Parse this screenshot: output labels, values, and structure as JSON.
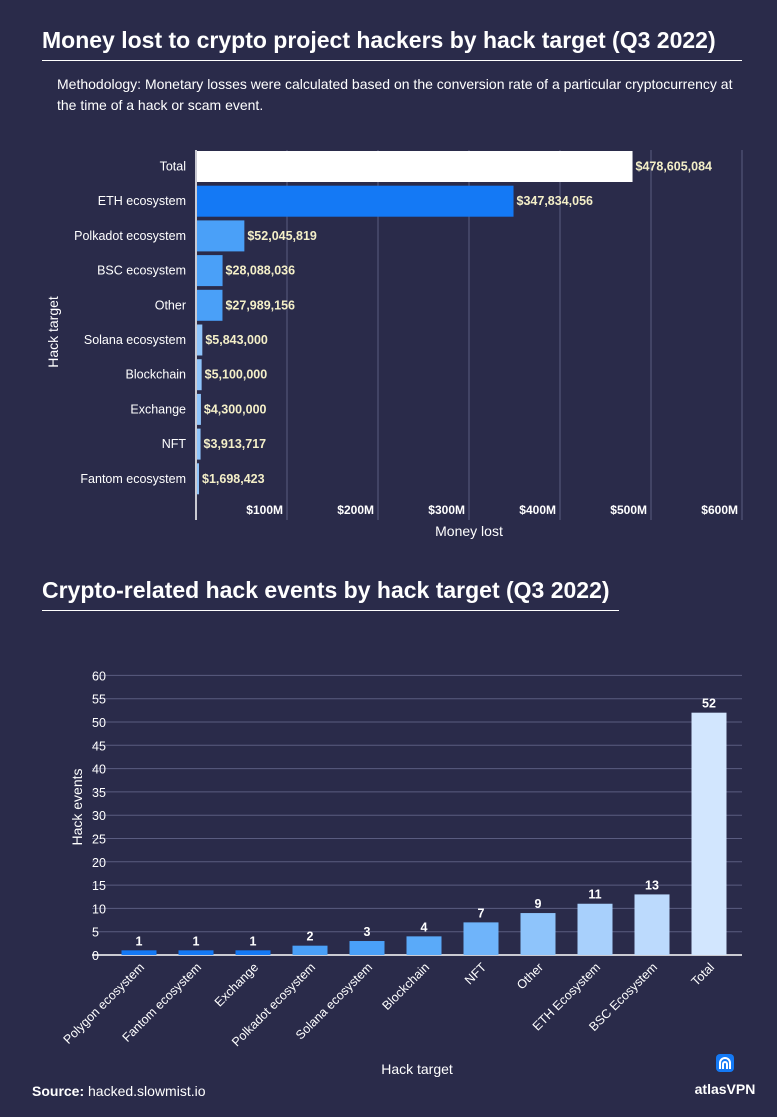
{
  "header": {
    "title1": "Money lost to crypto project hackers by hack target (Q3 2022)",
    "methodology": "Methodology: Monetary losses were calculated based on the conversion rate of a particular cryptocurrency at the time of a hack or scam event.",
    "title2": "Crypto-related hack events by hack target (Q3 2022)"
  },
  "footer": {
    "source_label": "Source:",
    "source_value": "hacked.slowmist.io",
    "logo_text": "atlasVPN"
  },
  "colors": {
    "background": "#2a2b4a",
    "total": "#ffffff",
    "eth": "#1479f5",
    "mid": "#4aa0f8",
    "light": "#8ec4fb",
    "pale": "#d2e6fe"
  },
  "chart_data": [
    {
      "type": "bar",
      "orientation": "horizontal",
      "title": "Money lost to crypto project hackers by hack target (Q3 2022)",
      "xlabel": "Money lost",
      "ylabel": "Hack target",
      "categories": [
        "Total",
        "ETH ecosystem",
        "Polkadot ecosystem",
        "BSC ecosystem",
        "Other",
        "Solana ecosystem",
        "Blockchain",
        "Exchange",
        "NFT",
        "Fantom ecosystem"
      ],
      "values": [
        478605084,
        347834056,
        52045819,
        28088036,
        27989156,
        5843000,
        5100000,
        4300000,
        3913717,
        1698423
      ],
      "labels": [
        "$478,605,084",
        "$347,834,056",
        "$52,045,819",
        "$28,088,036",
        "$27,989,156",
        "$5,843,000",
        "$5,100,000",
        "$4,300,000",
        "$3,913,717",
        "$1,698,423"
      ],
      "xlim": [
        0,
        600000000
      ],
      "xticks": [
        100000000,
        200000000,
        300000000,
        400000000,
        500000000,
        600000000
      ],
      "xtick_labels": [
        "$100M",
        "$200M",
        "$300M",
        "$400M",
        "$500M",
        "$600M"
      ],
      "grid": true
    },
    {
      "type": "bar",
      "orientation": "vertical",
      "title": "Crypto-related hack events by hack target (Q3 2022)",
      "xlabel": "Hack target",
      "ylabel": "Hack events",
      "categories": [
        "Polygon ecosystem",
        "Fantom ecosystem",
        "Exchange",
        "Polkadot ecosystem",
        "Solana ecosystem",
        "Blockchain",
        "NFT",
        "Other",
        "ETH Ecosystem",
        "BSC Ecosystem",
        "Total"
      ],
      "values": [
        1,
        1,
        1,
        2,
        3,
        4,
        7,
        9,
        11,
        13,
        52
      ],
      "ylim": [
        0,
        60
      ],
      "yticks": [
        0,
        5,
        10,
        15,
        20,
        25,
        30,
        35,
        40,
        45,
        50,
        55,
        60
      ],
      "grid": true
    }
  ]
}
